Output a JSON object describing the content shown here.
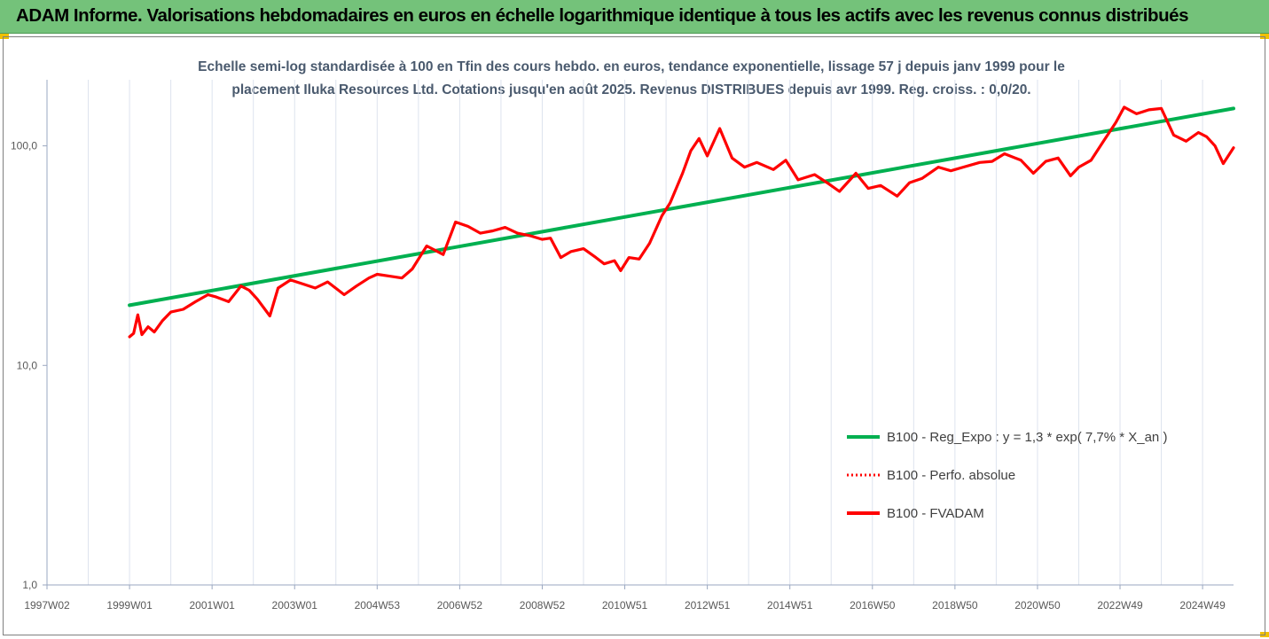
{
  "header": {
    "title": "ADAM Informe. Valorisations hebdomadaires en euros en échelle logarithmique identique à tous les actifs avec les revenus connus distribués",
    "background": "#74c27a"
  },
  "chart_data": {
    "type": "line",
    "subtitle_line1": "Echelle semi-log standardisée à 100 en Tfin des cours hebdo. en euros, tendance exponentielle, lissage 57 j depuis janv 1999 pour le",
    "subtitle_line2": "placement Iluka Resources Ltd. Cotations jusqu'en août 2025. Revenus DISTRIBUES depuis avr 1999. Reg. croiss. : 0,0/20.",
    "y_scale": "log",
    "ylim": [
      1,
      200
    ],
    "y_ticks": [
      {
        "value": 1,
        "label": "1,0"
      },
      {
        "value": 10,
        "label": "10,0"
      },
      {
        "value": 100,
        "label": "100,0"
      }
    ],
    "xlim": [
      1997.0,
      2025.75
    ],
    "x_ticks": [
      {
        "value": 1997.0,
        "label": "1997W02"
      },
      {
        "value": 1999.0,
        "label": "1999W01"
      },
      {
        "value": 2001.0,
        "label": "2001W01"
      },
      {
        "value": 2003.0,
        "label": "2003W01"
      },
      {
        "value": 2005.0,
        "label": "2004W53"
      },
      {
        "value": 2007.0,
        "label": "2006W52"
      },
      {
        "value": 2009.0,
        "label": "2008W52"
      },
      {
        "value": 2011.0,
        "label": "2010W51"
      },
      {
        "value": 2013.0,
        "label": "2012W51"
      },
      {
        "value": 2015.0,
        "label": "2014W51"
      },
      {
        "value": 2017.0,
        "label": "2016W50"
      },
      {
        "value": 2019.0,
        "label": "2018W50"
      },
      {
        "value": 2021.0,
        "label": "2020W50"
      },
      {
        "value": 2023.0,
        "label": "2022W49"
      },
      {
        "value": 2025.0,
        "label": "2024W49"
      }
    ],
    "grid": "vertical",
    "legend_position": "right",
    "series": [
      {
        "name": "B100 - Reg_Expo : y = 1,3 * exp( 7,7% *  X_an )",
        "color": "#00b050",
        "style": "solid",
        "x": [
          1999.0,
          2025.75
        ],
        "y": [
          18.8,
          148
        ]
      },
      {
        "name": "B100 - Perfo. absolue",
        "color": "#ff0000",
        "style": "dotted",
        "x": [],
        "y": []
      },
      {
        "name": "B100 - FVADAM",
        "color": "#ff0000",
        "style": "solid",
        "x": [
          1999.0,
          1999.1,
          1999.2,
          1999.3,
          1999.45,
          1999.6,
          1999.8,
          2000.0,
          2000.3,
          2000.6,
          2000.9,
          2001.1,
          2001.4,
          2001.7,
          2001.9,
          2002.1,
          2002.4,
          2002.6,
          2002.9,
          2003.2,
          2003.5,
          2003.8,
          2004.2,
          2004.5,
          2004.8,
          2005.0,
          2005.3,
          2005.6,
          2005.85,
          2006.2,
          2006.6,
          2006.9,
          2007.2,
          2007.5,
          2007.8,
          2008.1,
          2008.4,
          2008.7,
          2009.0,
          2009.2,
          2009.45,
          2009.7,
          2010.0,
          2010.3,
          2010.5,
          2010.75,
          2010.9,
          2011.1,
          2011.35,
          2011.6,
          2011.9,
          2012.1,
          2012.4,
          2012.6,
          2012.8,
          2013.0,
          2013.3,
          2013.6,
          2013.9,
          2014.2,
          2014.6,
          2014.9,
          2015.2,
          2015.6,
          2015.9,
          2016.2,
          2016.6,
          2016.9,
          2017.2,
          2017.6,
          2017.9,
          2018.2,
          2018.6,
          2018.9,
          2019.2,
          2019.6,
          2019.9,
          2020.2,
          2020.6,
          2020.9,
          2021.2,
          2021.5,
          2021.8,
          2022.0,
          2022.3,
          2022.6,
          2022.9,
          2023.1,
          2023.4,
          2023.7,
          2024.0,
          2024.3,
          2024.6,
          2024.9,
          2025.1,
          2025.3,
          2025.5,
          2025.75
        ],
        "y": [
          13.5,
          14.0,
          17.0,
          13.8,
          15.0,
          14.2,
          16.0,
          17.5,
          18.0,
          19.5,
          21.0,
          20.5,
          19.5,
          23.0,
          22.0,
          20.0,
          16.8,
          22.5,
          24.5,
          23.5,
          22.5,
          24.0,
          21.0,
          23.0,
          25.0,
          26.0,
          25.5,
          25.0,
          27.5,
          35.0,
          32.0,
          45.0,
          43.0,
          40.0,
          41.0,
          42.5,
          40.0,
          39.0,
          37.5,
          38.0,
          31.0,
          33.0,
          34.0,
          31.0,
          29.0,
          30.0,
          27.0,
          31.0,
          30.5,
          36.0,
          48.0,
          55.0,
          75.0,
          95.0,
          108.0,
          90.0,
          120.0,
          88.0,
          80.0,
          84.0,
          78.0,
          86.0,
          70.0,
          74.0,
          68.0,
          62.0,
          75.0,
          64.0,
          66.0,
          59.0,
          68.0,
          71.0,
          80.0,
          77.0,
          80.0,
          84.0,
          85.0,
          92.0,
          86.0,
          75.0,
          85.0,
          88.0,
          73.0,
          80.0,
          86.0,
          105.0,
          128.0,
          150.0,
          140.0,
          146.0,
          148.0,
          112.0,
          105.0,
          115.0,
          110.0,
          100.0,
          83.0,
          98.0
        ]
      }
    ]
  }
}
